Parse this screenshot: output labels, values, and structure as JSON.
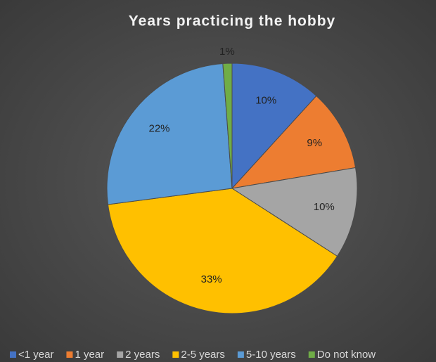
{
  "chart_data": {
    "type": "pie",
    "title": "Years practicing the hobby",
    "categories": [
      "<1 year",
      "1 year",
      "2 years",
      "2-5 years",
      "5-10 years",
      "Do not know"
    ],
    "values": [
      10,
      9,
      10,
      33,
      22,
      1
    ],
    "value_labels": [
      "10%",
      "9%",
      "10%",
      "33%",
      "22%",
      "1%"
    ],
    "colors": [
      "#4472c4",
      "#ed7d31",
      "#a5a5a5",
      "#ffc000",
      "#5b9bd5",
      "#70ad47"
    ],
    "legend": "bottom"
  }
}
